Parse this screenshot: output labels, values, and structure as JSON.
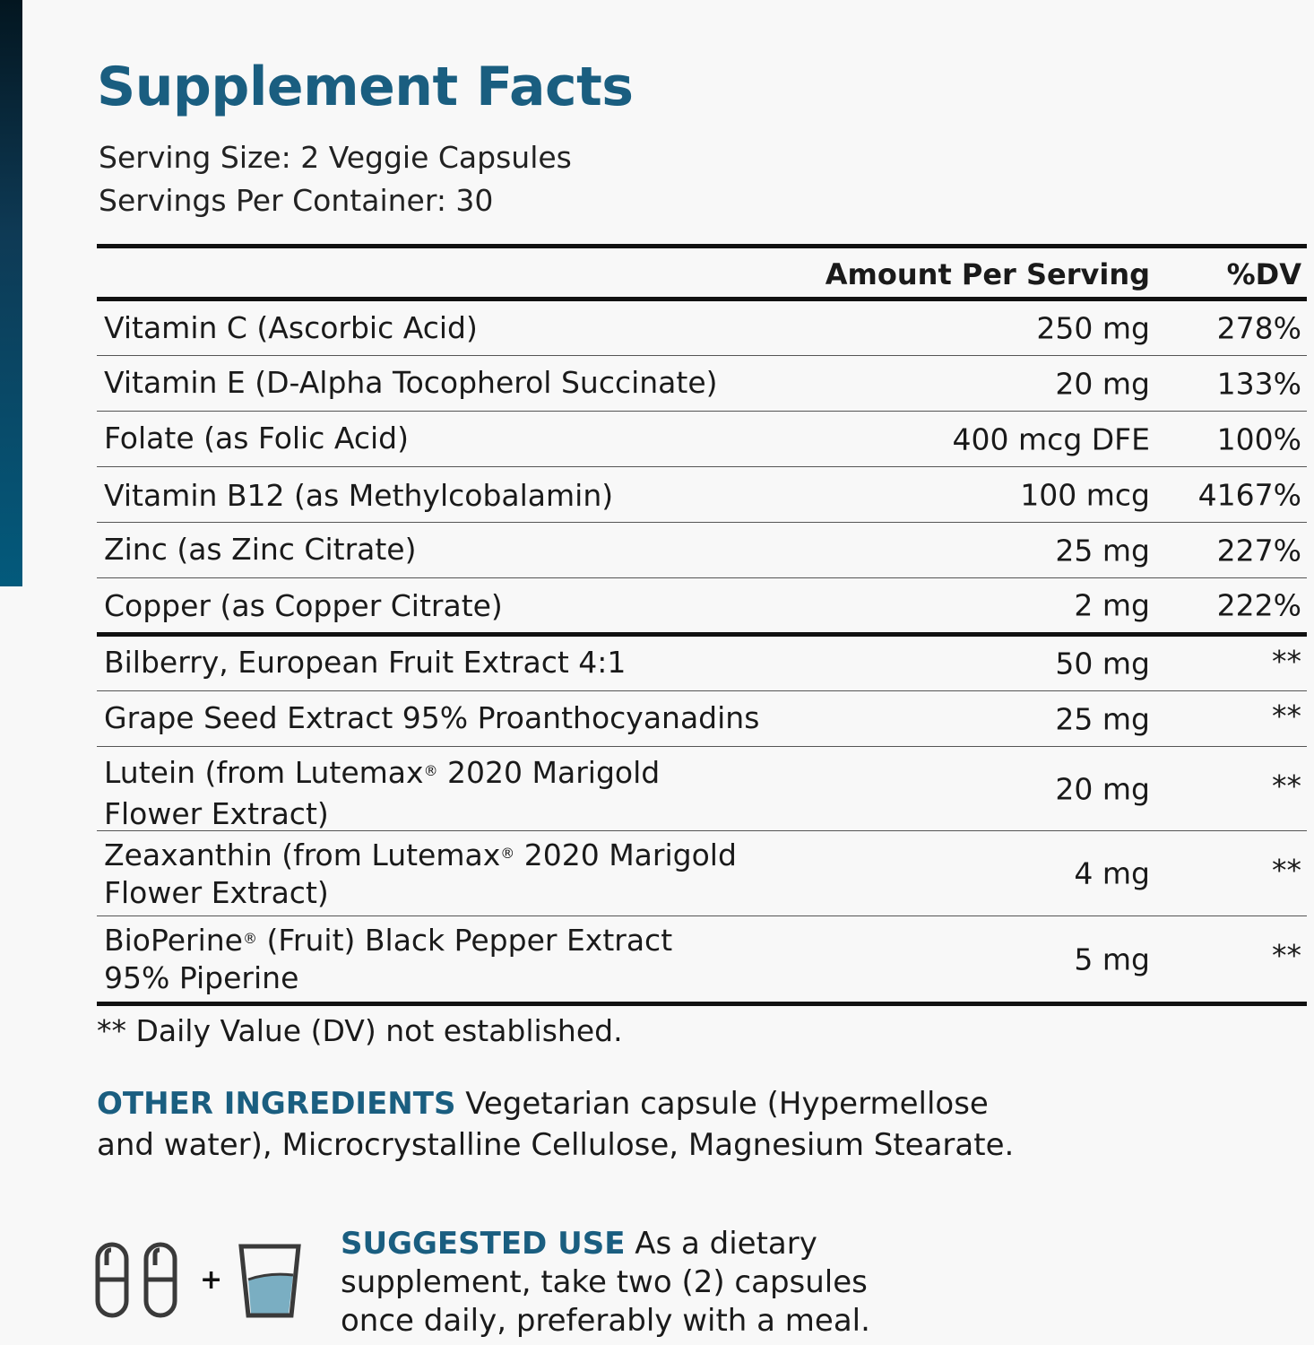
{
  "title": "Supplement Facts",
  "serving_size": "Serving Size: 2 Veggie Capsules",
  "servings_per_container": "Servings Per Container: 30",
  "header": {
    "amount": "Amount Per Serving",
    "dv": "%DV"
  },
  "rows": [
    {
      "name": "Vitamin C (Ascorbic Acid)",
      "amount": "250 mg",
      "dv": "278%"
    },
    {
      "name": "Vitamin E (D-Alpha Tocopherol Succinate)",
      "amount": "20 mg",
      "dv": "133%"
    },
    {
      "name": "Folate (as Folic Acid)",
      "amount": "400 mcg DFE",
      "dv": "100%"
    },
    {
      "name": "Vitamin B12 (as Methylcobalamin)",
      "amount": "100 mcg",
      "dv": "4167%"
    },
    {
      "name": "Zinc (as Zinc Citrate)",
      "amount": "25 mg",
      "dv": "227%"
    },
    {
      "name": "Copper (as Copper Citrate)",
      "amount": "2 mg",
      "dv": "222%"
    },
    {
      "name": "Bilberry, European Fruit Extract 4:1",
      "amount": "50 mg",
      "dv": "**"
    },
    {
      "name": "Grape Seed Extract 95% Proanthocyanadins",
      "amount": "25 mg",
      "dv": "**"
    },
    {
      "name_a": "Lutein (from Lutemax",
      "name_b": " 2020 Marigold",
      "name_c": "Flower Extract)",
      "amount": "20 mg",
      "dv": "**"
    },
    {
      "name_a": "Zeaxanthin (from Lutemax",
      "name_b": " 2020 Marigold",
      "name_c": "Flower Extract)",
      "amount": "4 mg",
      "dv": "**"
    },
    {
      "name_a": "BioPerine",
      "name_b": " (Fruit) Black Pepper Extract",
      "name_c": "95% Piperine",
      "amount": "5 mg",
      "dv": "**"
    }
  ],
  "registered": "®",
  "footnote": "** Daily Value (DV) not established.",
  "other_ingredients": {
    "label": "OTHER INGREDIENTS",
    "text": " Vegetarian capsule (Hypermellose and water), Microcrystalline Cellulose, Magnesium Stearate."
  },
  "suggested_use": {
    "label": "SUGGESTED USE",
    "text": " As a dietary supplement, take two (2) capsules once daily, preferably with a meal."
  },
  "plus": "+",
  "colors": {
    "accent": "#1a5e80",
    "water": "#7aaec2"
  }
}
